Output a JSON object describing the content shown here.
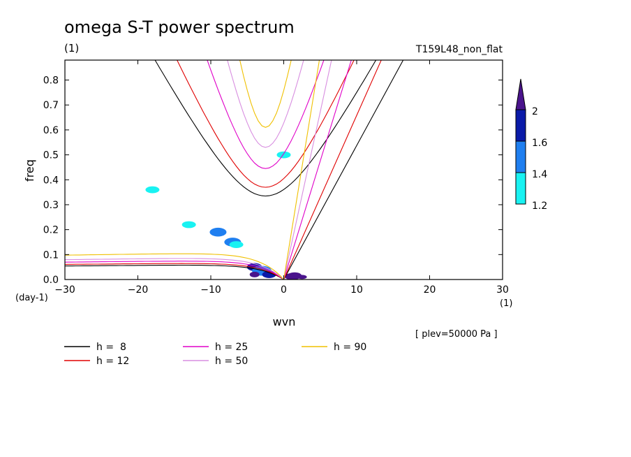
{
  "title": "omega S-T power spectrum",
  "subtitle_left": "(1)",
  "subtitle_right": "T159L48_non_flat",
  "xlabel": "wvn",
  "ylabel": "freq",
  "x_unit_label": "(1)",
  "y_unit_label": "(day-1)",
  "level_note": "[ plev=50000 Pa ]",
  "colorbar": {
    "labels": [
      "2",
      "1.6",
      "1.4",
      "1.2"
    ],
    "colors": [
      "#4a148c",
      "#0a1aa8",
      "#1f7ff0",
      "#19f2f2"
    ]
  },
  "chart_data": {
    "type": "line",
    "title": "omega S-T power spectrum",
    "xlabel": "wvn",
    "ylabel": "freq",
    "xlim": [
      -30,
      30
    ],
    "ylim": [
      0,
      0.88
    ],
    "xticks": [
      -30,
      -20,
      -10,
      0,
      10,
      20,
      30
    ],
    "xtick_labels": [
      "−30",
      "−20",
      "−10",
      "0",
      "10",
      "20",
      "30"
    ],
    "yticks": [
      0,
      0.1,
      0.2,
      0.3,
      0.4,
      0.5,
      0.6,
      0.7,
      0.8
    ],
    "ytick_labels": [
      "0.0",
      "0.1",
      "0.2",
      "0.3",
      "0.4",
      "0.5",
      "0.6",
      "0.7",
      "0.8"
    ],
    "series": [
      {
        "name": "h =  8",
        "color": "#000000"
      },
      {
        "name": "h = 12",
        "color": "#e00000"
      },
      {
        "name": "h = 25",
        "color": "#e000c8"
      },
      {
        "name": "h = 50",
        "color": "#d88ee0"
      },
      {
        "name": "h = 90",
        "color": "#f0c000"
      }
    ],
    "shading": {
      "levels": [
        1.2,
        1.4,
        1.6,
        2
      ],
      "colors": [
        "#19f2f2",
        "#1f7ff0",
        "#0a1aa8",
        "#4a148c"
      ],
      "blobs": [
        {
          "x": -9,
          "y": 0.19,
          "level": 1
        },
        {
          "x": -7,
          "y": 0.15,
          "level": 1
        },
        {
          "x": -4,
          "y": 0.05,
          "level": 2
        },
        {
          "x": -2,
          "y": 0.02,
          "level": 3
        },
        {
          "x": 1.5,
          "y": 0.015,
          "level": 3
        },
        {
          "x": -13,
          "y": 0.22,
          "level": 0
        },
        {
          "x": -6.5,
          "y": 0.14,
          "level": 0
        },
        {
          "x": 0,
          "y": 0.5,
          "level": 0
        },
        {
          "x": -18,
          "y": 0.36,
          "level": 0
        }
      ]
    }
  }
}
